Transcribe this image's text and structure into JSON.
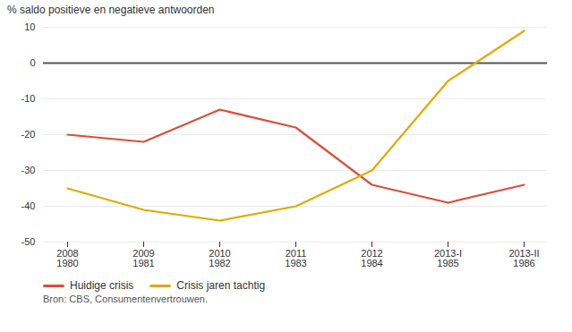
{
  "chart_data": {
    "type": "line",
    "y_label": "% saldo positieve en negatieve antwoorden",
    "categories": [
      "2008\n1980",
      "2009\n1981",
      "2010\n1982",
      "2011\n1983",
      "2012\n1984",
      "2013-I\n1985",
      "2013-II\n1986"
    ],
    "series": [
      {
        "name": "Huidige crisis",
        "color": "#d94f3d",
        "values": [
          -20,
          -22,
          -13,
          -18,
          -34,
          -39,
          -34
        ]
      },
      {
        "name": "Crisis jaren tachtig",
        "color": "#e0aa00",
        "values": [
          -35,
          -41,
          -44,
          -40,
          -30,
          -5,
          9
        ]
      }
    ],
    "ylim": [
      -50,
      10
    ],
    "yticks": [
      10,
      0,
      -10,
      -20,
      -30,
      -40,
      -50
    ],
    "grid": true,
    "legend": "bottom",
    "reference_lines": [
      {
        "y": 0,
        "color": "#555555"
      }
    ],
    "source": "Bron: CBS, Consumentenvertrouwen."
  }
}
